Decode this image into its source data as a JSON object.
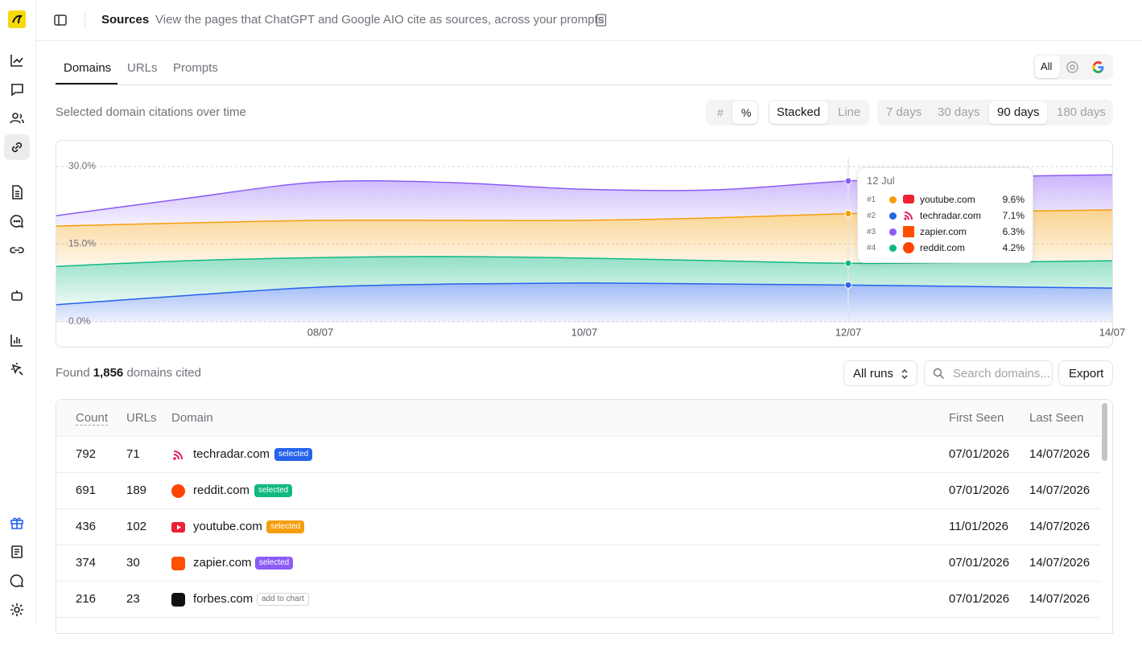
{
  "header": {
    "title": "Sources",
    "description": "View the pages that ChatGPT and Google AIO cite as sources, across your prompts"
  },
  "tabs": [
    "Domains",
    "URLs",
    "Prompts"
  ],
  "provider_filter": {
    "all": "All"
  },
  "chart_section": {
    "title": "Selected domain citations over time",
    "unit_toggle": [
      "#",
      "%"
    ],
    "mode_toggle": [
      "Stacked",
      "Line"
    ],
    "range_toggle": [
      "7 days",
      "30 days",
      "90 days",
      "180 days"
    ]
  },
  "chart_data": {
    "type": "stacked-area",
    "categories": [
      null,
      null,
      "08/07",
      null,
      "10/07",
      null,
      "12/07",
      null,
      "14/07"
    ],
    "series": [
      {
        "color": "#2563eb",
        "values": [
          3.3,
          5.1,
          6.7,
          7.3,
          7.5,
          7.3,
          7.1,
          6.8,
          6.5
        ]
      },
      {
        "color": "#10b981",
        "values": [
          7.4,
          6.7,
          5.7,
          5.3,
          4.8,
          4.5,
          4.2,
          4.7,
          5.3
        ]
      },
      {
        "color": "#f59e0b",
        "values": [
          7.8,
          7.3,
          7.2,
          7.0,
          7.3,
          8.3,
          9.6,
          9.8,
          9.8
        ]
      },
      {
        "color": "#8b5cf6",
        "values": [
          2.0,
          4.8,
          7.4,
          7.3,
          6.0,
          5.4,
          6.3,
          6.7,
          6.8
        ]
      }
    ],
    "ylim": [
      0,
      30
    ],
    "yticks": [
      {
        "value": 0,
        "label": "0.0%"
      },
      {
        "value": 15,
        "label": "15.0%"
      },
      {
        "value": 30,
        "label": "30.0%"
      }
    ],
    "grid": true,
    "tooltip": {
      "title": "12 Jul",
      "rows": [
        {
          "rank": "#1",
          "domain": "youtube.com",
          "value": "9.6%"
        },
        {
          "rank": "#2",
          "domain": "techradar.com",
          "value": "7.1%"
        },
        {
          "rank": "#3",
          "domain": "zapier.com",
          "value": "6.3%"
        },
        {
          "rank": "#4",
          "domain": "reddit.com",
          "value": "4.2%"
        }
      ]
    }
  },
  "results": {
    "prefix": "Found",
    "count": "1,856",
    "suffix": "domains cited",
    "runs_filter": "All runs",
    "search_placeholder": "Search domains...",
    "export": "Export"
  },
  "table": {
    "columns": [
      "Count",
      "URLs",
      "Domain",
      "First Seen",
      "Last Seen"
    ],
    "rows": [
      {
        "count": 792,
        "urls": 71,
        "domain": "techradar.com",
        "badge": "selected",
        "first_seen": "07/01/2026",
        "last_seen": "14/07/2026"
      },
      {
        "count": 691,
        "urls": 189,
        "domain": "reddit.com",
        "badge": "selected",
        "first_seen": "07/01/2026",
        "last_seen": "14/07/2026"
      },
      {
        "count": 436,
        "urls": 102,
        "domain": "youtube.com",
        "badge": "selected",
        "first_seen": "11/01/2026",
        "last_seen": "14/07/2026"
      },
      {
        "count": 374,
        "urls": 30,
        "domain": "zapier.com",
        "badge": "selected",
        "first_seen": "07/01/2026",
        "last_seen": "14/07/2026"
      },
      {
        "count": 216,
        "urls": 23,
        "domain": "forbes.com",
        "badge": "add to chart",
        "first_seen": "07/01/2026",
        "last_seen": "14/07/2026"
      }
    ]
  }
}
